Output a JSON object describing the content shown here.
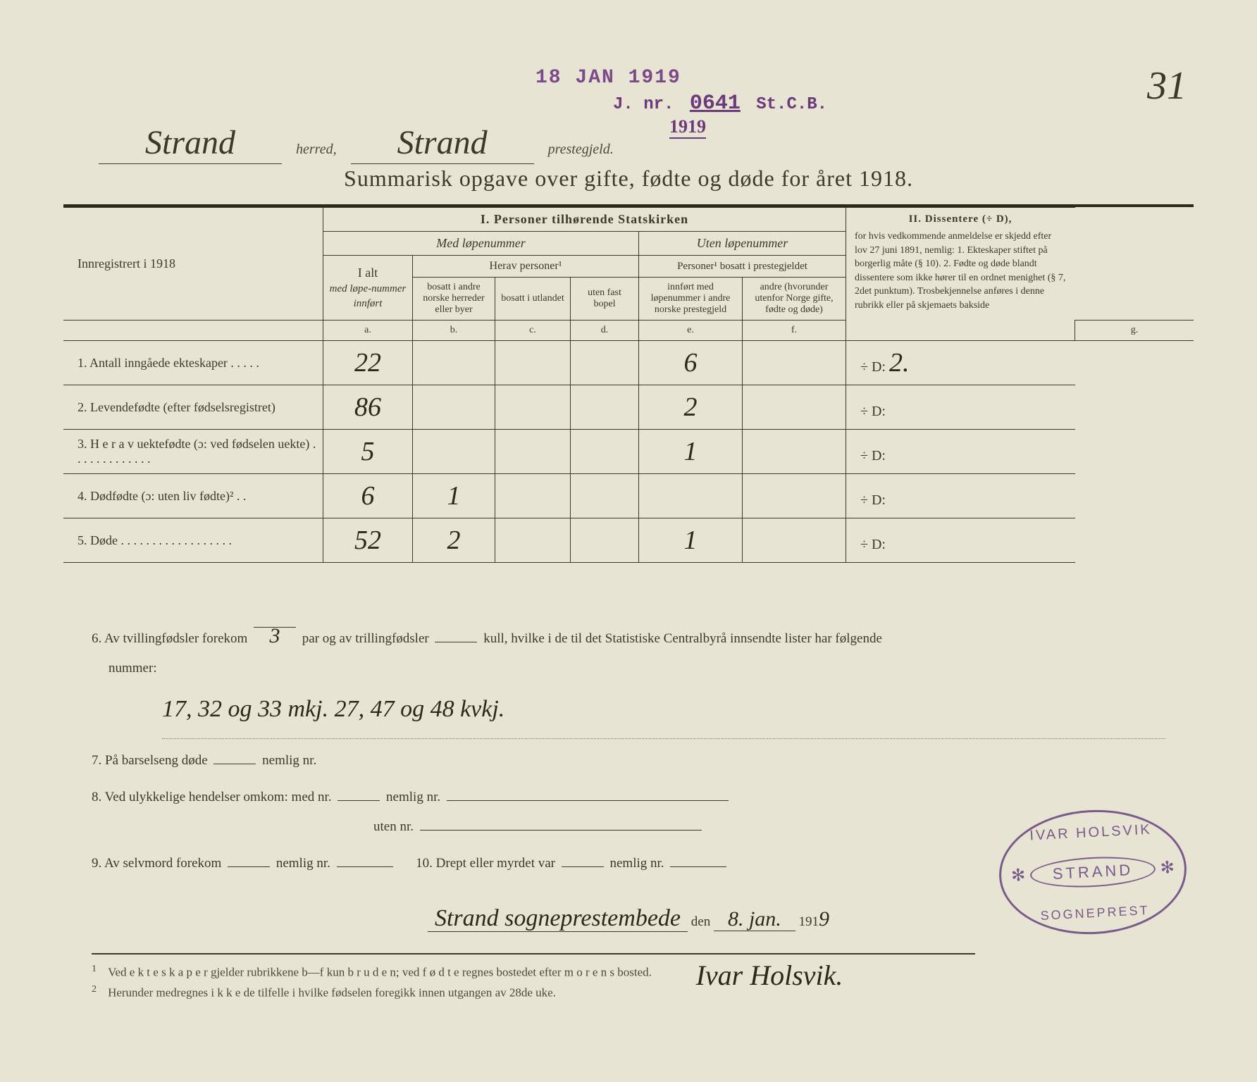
{
  "stamps": {
    "date": "18 JAN 1919",
    "jnr_prefix": "J. nr.",
    "jnr_num": "0641",
    "jnr_suffix": "St.C.B.",
    "year_below": "1919"
  },
  "page_number": "31",
  "header": {
    "herred_value": "Strand",
    "herred_label": "herred,",
    "prestegjeld_value": "Strand",
    "prestegjeld_label": "prestegjeld."
  },
  "title": "Summarisk opgave over gifte, fødte og døde for året 1918.",
  "table": {
    "section1_title": "I.  Personer tilhørende Statskirken",
    "section2_title": "II.  Dissentere (÷ D),",
    "med_lopenummer": "Med løpenummer",
    "uten_lopenummer": "Uten løpenummer",
    "innregistrert": "Innregistrert i 1918",
    "col_a_top": "I alt",
    "col_a_mid": "med løpe-nummer innført",
    "herav_personer": "Herav personer¹",
    "col_b": "bosatt i andre norske herreder eller byer",
    "col_c": "bosatt i utlandet",
    "col_d": "uten fast bopel",
    "personer_bosatt": "Personer¹ bosatt i prestegjeldet",
    "col_e": "innført med løpenummer i andre norske prestegjeld",
    "col_f": "andre (hvorunder utenfor Norge gifte, fødte og døde)",
    "diss_text": "for hvis vedkommende anmeldelse er skjedd efter lov 27 juni 1891, nemlig: 1. Ekteskaper stiftet på borgerlig måte (§ 10). 2. Fødte og døde blandt dissentere som ikke hører til en ordnet menighet (§ 7, 2det punktum). Trosbekjennelse anføres i denne rubrikk eller på skjemaets bakside",
    "letters": [
      "a.",
      "b.",
      "c.",
      "d.",
      "e.",
      "f.",
      "g."
    ],
    "rows": [
      {
        "n": "1.",
        "label": "Antall inngåede ekteskaper . . . . .",
        "a": "22",
        "b": "",
        "c": "",
        "d": "",
        "e": "6",
        "f": "",
        "g": "2."
      },
      {
        "n": "2.",
        "label": "Levendefødte (efter fødselsregistret)",
        "a": "86",
        "b": "",
        "c": "",
        "d": "",
        "e": "2",
        "f": "",
        "g": ""
      },
      {
        "n": "3.",
        "label": "H e r a v uektefødte (ɔ: ved fødselen uekte) . . . . . . . . . . . . .",
        "a": "5",
        "b": "",
        "c": "",
        "d": "",
        "e": "1",
        "f": "",
        "g": ""
      },
      {
        "n": "4.",
        "label": "Dødfødte (ɔ: uten liv fødte)² . .",
        "a": "6",
        "b": "1",
        "c": "",
        "d": "",
        "e": "",
        "f": "",
        "g": ""
      },
      {
        "n": "5.",
        "label": "Døde . . . . . . . . . . . . . . . . . .",
        "a": "52",
        "b": "2",
        "c": "",
        "d": "",
        "e": "1",
        "f": "",
        "g": ""
      }
    ],
    "d_prefix": "÷ D:"
  },
  "below": {
    "line6a": "6.  Av tvillingfødsler forekom",
    "line6_twin_count": "3",
    "line6b": "par og av trillingfødsler",
    "line6c": "kull, hvilke i de til det Statistiske Centralbyrå innsendte lister har følgende",
    "line6d": "nummer:",
    "twin_numbers": "17, 32 og 33 mkj. 27, 47 og 48 kvkj.",
    "line7": "7.  På barselseng døde",
    "nemlig": "nemlig nr.",
    "line8a": "8.  Ved ulykkelige hendelser omkom:  med nr.",
    "line8b": "uten nr.",
    "line9": "9.  Av selvmord forekom",
    "line10": "10.  Drept eller myrdet var",
    "place": "Strand sogneprestembede",
    "den": "den",
    "date_hand": "8. jan.",
    "year_prefix": "191",
    "year_hand": "9",
    "signature": "Ivar Holsvik."
  },
  "oval_stamp": {
    "top": "IVAR HOLSVIK",
    "mid": "STRAND",
    "bot": "SOGNEPREST"
  },
  "footnotes": {
    "f1": "Ved e k t e s k a p e r gjelder rubrikkene b—f kun b r u d e n; ved f ø d t e regnes bostedet efter m o r e n s bosted.",
    "f2": "Herunder medregnes i k k e de tilfelle i hvilke fødselen foregikk innen utgangen av 28de uke."
  },
  "colors": {
    "paper": "#e8e4d4",
    "ink": "#3a3a2a",
    "stamp_purple": "#7a4a8a",
    "handwriting": "#2a2a1a"
  }
}
